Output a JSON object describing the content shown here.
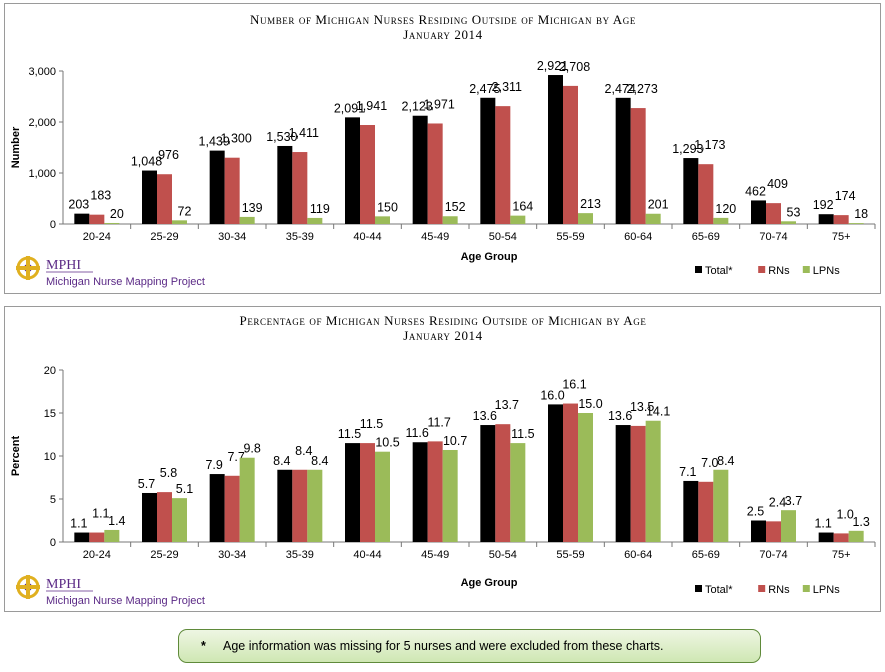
{
  "chart_data": [
    {
      "type": "bar",
      "title": [
        "Number of Michigan Nurses Residing Outside of Michigan by Age",
        "January 2014"
      ],
      "xlabel": "Age Group",
      "ylabel": "Number",
      "ylim": [
        0,
        3000
      ],
      "yticks": [
        "0",
        "1,000",
        "2,000",
        "3,000"
      ],
      "ytick_values": [
        0,
        1000,
        2000,
        3000
      ],
      "grid": false,
      "legend_position": "bottom-right",
      "categories": [
        "20-24",
        "25-29",
        "30-34",
        "35-39",
        "40-44",
        "45-49",
        "50-54",
        "55-59",
        "60-64",
        "65-69",
        "70-74",
        "75+"
      ],
      "series": [
        {
          "name": "Total*",
          "color": "#000000",
          "values": [
            203,
            1048,
            1439,
            1530,
            2091,
            2123,
            2475,
            2921,
            2474,
            1293,
            462,
            192
          ],
          "labels": [
            "203",
            "1,048",
            "1,439",
            "1,530",
            "2,091",
            "2,123",
            "2,475",
            "2,921",
            "2,474",
            "1,293",
            "462",
            "192"
          ]
        },
        {
          "name": "RNs",
          "color": "#c0504d",
          "values": [
            183,
            976,
            1300,
            1411,
            1941,
            1971,
            2311,
            2708,
            2273,
            1173,
            409,
            174
          ],
          "labels": [
            "183",
            "976",
            "1,300",
            "1,411",
            "1,941",
            "1,971",
            "2,311",
            "2,708",
            "2,273",
            "1,173",
            "409",
            "174"
          ]
        },
        {
          "name": "LPNs",
          "color": "#9bbb59",
          "values": [
            20,
            72,
            139,
            119,
            150,
            152,
            164,
            213,
            201,
            120,
            53,
            18
          ],
          "labels": [
            "20",
            "72",
            "139",
            "119",
            "150",
            "152",
            "164",
            "213",
            "201",
            "120",
            "53",
            "18"
          ]
        }
      ]
    },
    {
      "type": "bar",
      "title": [
        "Percentage of Michigan Nurses Residing Outside of Michigan by Age",
        "January 2014"
      ],
      "xlabel": "Age Group",
      "ylabel": "Percent",
      "ylim": [
        0,
        20
      ],
      "yticks": [
        "0",
        "5",
        "10",
        "15",
        "20"
      ],
      "ytick_values": [
        0,
        5,
        10,
        15,
        20
      ],
      "grid": false,
      "legend_position": "bottom-right",
      "categories": [
        "20-24",
        "25-29",
        "30-34",
        "35-39",
        "40-44",
        "45-49",
        "50-54",
        "55-59",
        "60-64",
        "65-69",
        "70-74",
        "75+"
      ],
      "series": [
        {
          "name": "Total*",
          "color": "#000000",
          "values": [
            1.1,
            5.7,
            7.9,
            8.4,
            11.5,
            11.6,
            13.6,
            16.0,
            13.6,
            7.1,
            2.5,
            1.1
          ],
          "labels": [
            "1.1",
            "5.7",
            "7.9",
            "8.4",
            "11.5",
            "11.6",
            "13.6",
            "16.0",
            "13.6",
            "7.1",
            "2.5",
            "1.1"
          ]
        },
        {
          "name": "RNs",
          "color": "#c0504d",
          "values": [
            1.1,
            5.8,
            7.7,
            8.4,
            11.5,
            11.7,
            13.7,
            16.1,
            13.5,
            7.0,
            2.4,
            1.0
          ],
          "labels": [
            "1.1",
            "5.8",
            "7.7",
            "8.4",
            "11.5",
            "11.7",
            "13.7",
            "16.1",
            "13.5",
            "7.0",
            "2.4",
            "1.0"
          ]
        },
        {
          "name": "LPNs",
          "color": "#9bbb59",
          "values": [
            1.4,
            5.1,
            9.8,
            8.4,
            10.5,
            10.7,
            11.5,
            15.0,
            14.1,
            8.4,
            3.7,
            1.3
          ],
          "labels": [
            "1.4",
            "5.1",
            "9.8",
            "8.4",
            "10.5",
            "10.7",
            "11.5",
            "15.0",
            "14.1",
            "8.4",
            "3.7",
            "1.3"
          ]
        }
      ]
    }
  ],
  "logo": {
    "name": "MPHI",
    "subtitle": "Michigan Nurse Mapping Project",
    "icon": "mphi-logo-icon"
  },
  "footnote": {
    "marker": "*",
    "text": "Age information was missing for 5 nurses and were excluded from these charts."
  }
}
